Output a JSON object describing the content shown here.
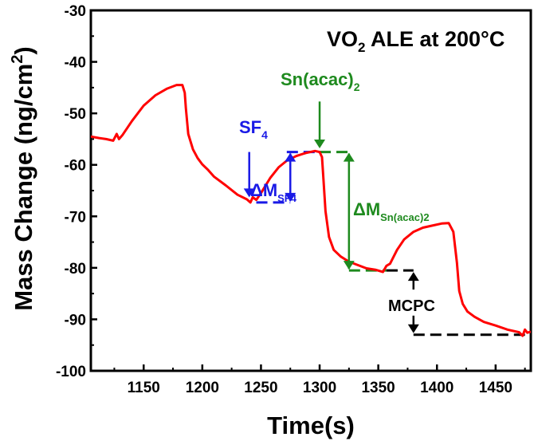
{
  "chart_data": {
    "type": "line",
    "title": "VO₂ ALE at 200°C",
    "title_parts": {
      "main": "VO",
      "sub": "2",
      "rest": " ALE at 200°C"
    },
    "xlabel": "Time(s)",
    "ylabel": "Mass Change (ng/cm²)",
    "ylabel_parts": {
      "main": "Mass Change (ng/cm",
      "sup": "2",
      "end": ")"
    },
    "xlim": [
      1105,
      1480
    ],
    "ylim": [
      -100,
      -30
    ],
    "xticks": [
      1150,
      1200,
      1250,
      1300,
      1350,
      1400,
      1450
    ],
    "yticks": [
      -100,
      -90,
      -80,
      -70,
      -60,
      -50,
      -40,
      -30
    ],
    "grid": false,
    "series": [
      {
        "color": "#ff0000",
        "x": [
          1105,
          1112,
          1118,
          1124,
          1127,
          1129,
          1132,
          1140,
          1150,
          1160,
          1170,
          1178,
          1183,
          1185,
          1186,
          1188,
          1192,
          1196,
          1200,
          1205,
          1210,
          1220,
          1230,
          1238,
          1241,
          1243,
          1246,
          1250,
          1258,
          1265,
          1272,
          1280,
          1288,
          1296,
          1300,
          1302,
          1303,
          1305,
          1308,
          1312,
          1318,
          1325,
          1333,
          1340,
          1348,
          1354,
          1357,
          1360,
          1366,
          1372,
          1380,
          1388,
          1396,
          1404,
          1410,
          1414,
          1417,
          1419,
          1422,
          1426,
          1432,
          1440,
          1450,
          1460,
          1470,
          1473,
          1475,
          1477,
          1480
        ],
        "y": [
          -54.5,
          -54.8,
          -55,
          -55.3,
          -54,
          -55,
          -54.2,
          -51.5,
          -48.5,
          -46.5,
          -45.2,
          -44.5,
          -44.5,
          -46,
          -49,
          -54,
          -57,
          -58.7,
          -59.9,
          -61,
          -62.3,
          -64,
          -65.8,
          -66.7,
          -67.3,
          -66.3,
          -66.8,
          -65.5,
          -62.5,
          -60.5,
          -59.2,
          -58.3,
          -57.7,
          -57.3,
          -57.5,
          -58.5,
          -62,
          -69,
          -74,
          -76.5,
          -77.8,
          -78.8,
          -79.5,
          -80.1,
          -80.4,
          -80.8,
          -79.6,
          -79.2,
          -76.5,
          -74.5,
          -73,
          -72.2,
          -71.8,
          -71.4,
          -71.3,
          -73,
          -79,
          -84.5,
          -87,
          -88.5,
          -89.5,
          -90.5,
          -91.2,
          -92,
          -92.5,
          -93.2,
          -92,
          -92.6,
          -92.4
        ]
      }
    ],
    "annotations": {
      "sf4": {
        "text": "SF",
        "sub": "4",
        "color": "#1a1ae6",
        "arrow_x": 1240,
        "arrow_from_y": -57.5,
        "arrow_to_y": -66.3
      },
      "snacac": {
        "text": "Sn(acac)",
        "sub": "2",
        "color": "#1e8a1e",
        "arrow_x": 1300,
        "arrow_from_y": -47.7,
        "arrow_to_y": -56.8
      },
      "delta_m_sf4": {
        "text": "ΔM",
        "sub": "SF4",
        "color": "#1a1ae6",
        "x": 1275,
        "y_top": -57.5,
        "y_bottom": -67.3,
        "top_line_x": [
          1272,
          1300
        ],
        "bottom_line_x": [
          1246,
          1275
        ]
      },
      "delta_m_sn": {
        "text": "ΔM",
        "sub": "Sn(acac)2",
        "color": "#1e8a1e",
        "x": 1325,
        "y_top": -57.5,
        "y_bottom": -80.5,
        "top_line_x": [
          1300,
          1325
        ],
        "bottom_line_x": [
          1325,
          1357
        ]
      },
      "mcpc": {
        "text": "MCPC",
        "color": "#000000",
        "x": 1380,
        "y_top": -80.5,
        "y_bottom": -93,
        "top_line_x": [
          1357,
          1380
        ],
        "bottom_line_x": [
          1380,
          1475
        ]
      }
    }
  }
}
